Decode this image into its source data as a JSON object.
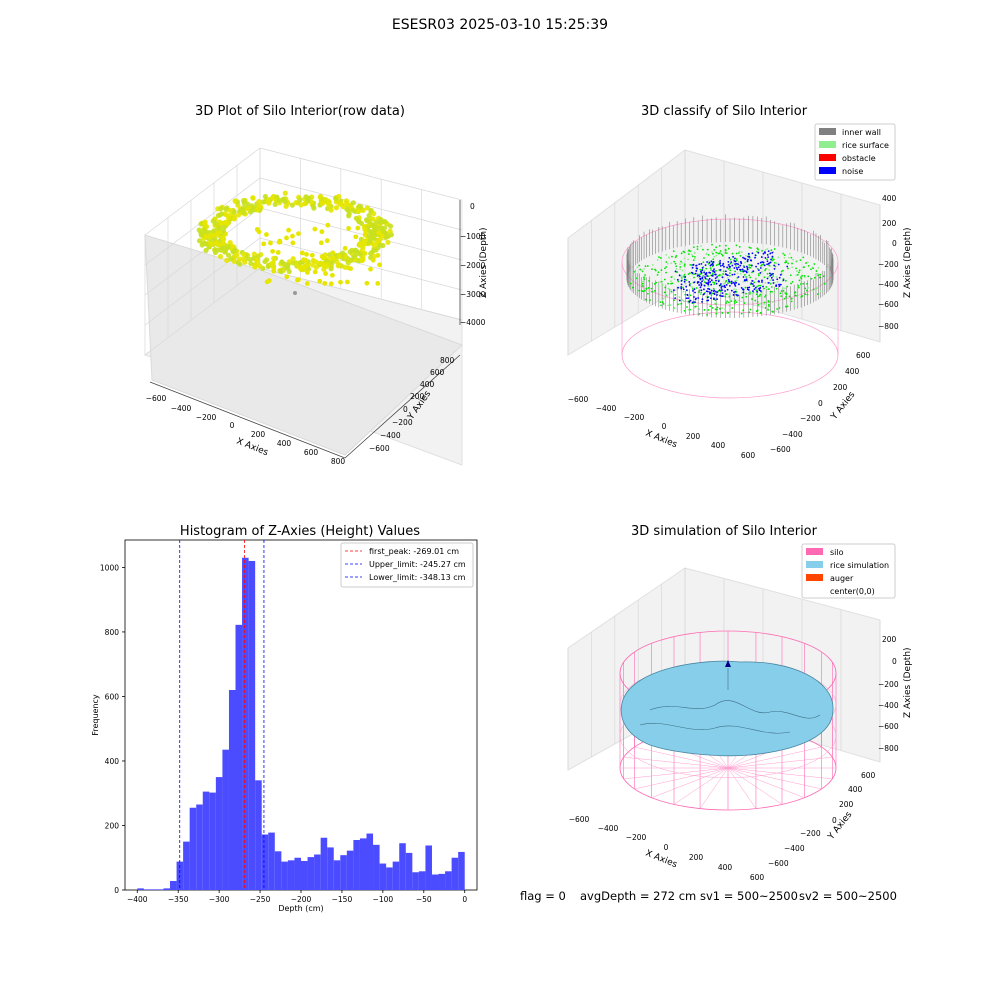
{
  "figure": {
    "suptitle": "ESESR03 2025-03-10 15:25:39"
  },
  "colors": {
    "raw_points": "#e6e600",
    "inner_wall": "#808080",
    "rice_surface": "#90ee90",
    "rice_points": "#00e600",
    "obstacle": "#ff0000",
    "noise": "#0000ff",
    "silo": "#ff69b4",
    "rice_simulation": "#87ceeb",
    "auger": "#ff4500",
    "hist_bar": "#4b4bff",
    "first_peak_line": "#ff0000",
    "limit_line": "#0000ff"
  },
  "chart_data": [
    {
      "type": "scatter",
      "title": "3D Plot of Silo Interior(row data)",
      "xlabel": "X Axies",
      "ylabel": "Y Axies",
      "zlabel": "Z Axies (Depth)",
      "x_ticks": [
        "−600",
        "−400",
        "−200",
        "0",
        "200",
        "400",
        "600",
        "800"
      ],
      "y_ticks": [
        "−600",
        "−400",
        "−200",
        "0",
        "200",
        "400",
        "600",
        "800"
      ],
      "z_ticks": [
        "0",
        "−1000",
        "−2000",
        "−3000",
        "−4000"
      ],
      "xlim": [
        -700,
        800
      ],
      "ylim": [
        -700,
        900
      ],
      "zlim": [
        -4500,
        100
      ]
    },
    {
      "type": "scatter",
      "title": "3D classify of Silo Interior",
      "xlabel": "X Axies",
      "ylabel": "Y Axies",
      "zlabel": "Z Axies (Depth)",
      "x_ticks": [
        "−600",
        "−400",
        "−200",
        "0",
        "200",
        "400",
        "600"
      ],
      "y_ticks": [
        "−600",
        "−400",
        "−200",
        "0",
        "200",
        "400",
        "600"
      ],
      "z_ticks": [
        "400",
        "200",
        "0",
        "−200",
        "−400",
        "−600",
        "−800"
      ],
      "legend": [
        "inner wall",
        "rice surface",
        "obstacle",
        "noise"
      ],
      "legend_position": "top-right"
    },
    {
      "type": "bar",
      "title": "Histogram of Z-Axies (Height) Values",
      "xlabel": "Depth (cm)",
      "ylabel": "Frequency",
      "x_ticks": [
        -400,
        -350,
        -300,
        -250,
        -200,
        -150,
        -100,
        -50,
        0
      ],
      "y_ticks": [
        0,
        200,
        400,
        600,
        800,
        1000
      ],
      "xlim": [
        -415,
        15
      ],
      "ylim": [
        0,
        1085
      ],
      "bin_width": 8,
      "bins": [
        [
          -400,
          5
        ],
        [
          -392,
          2
        ],
        [
          -384,
          2
        ],
        [
          -376,
          2
        ],
        [
          -368,
          5
        ],
        [
          -360,
          28
        ],
        [
          -352,
          88
        ],
        [
          -344,
          150
        ],
        [
          -336,
          255
        ],
        [
          -328,
          265
        ],
        [
          -320,
          305
        ],
        [
          -312,
          302
        ],
        [
          -304,
          350
        ],
        [
          -296,
          435
        ],
        [
          -288,
          620
        ],
        [
          -280,
          822
        ],
        [
          -272,
          1030
        ],
        [
          -264,
          1020
        ],
        [
          -256,
          340
        ],
        [
          -248,
          172
        ],
        [
          -240,
          178
        ],
        [
          -232,
          120
        ],
        [
          -224,
          88
        ],
        [
          -216,
          92
        ],
        [
          -208,
          100
        ],
        [
          -200,
          90
        ],
        [
          -192,
          102
        ],
        [
          -184,
          110
        ],
        [
          -176,
          162
        ],
        [
          -168,
          132
        ],
        [
          -160,
          92
        ],
        [
          -152,
          108
        ],
        [
          -144,
          122
        ],
        [
          -136,
          155
        ],
        [
          -128,
          160
        ],
        [
          -120,
          175
        ],
        [
          -112,
          140
        ],
        [
          -104,
          82
        ],
        [
          -96,
          70
        ],
        [
          -88,
          88
        ],
        [
          -80,
          145
        ],
        [
          -72,
          115
        ],
        [
          -64,
          55
        ],
        [
          -56,
          58
        ],
        [
          -48,
          138
        ],
        [
          -40,
          48
        ],
        [
          -32,
          50
        ],
        [
          -24,
          58
        ],
        [
          -16,
          100
        ],
        [
          -8,
          118
        ]
      ],
      "vlines": [
        {
          "label": "first_peak: -269.01 cm",
          "x": -269.01,
          "color": "#ff0000"
        },
        {
          "label": "Upper_limit: -245.27 cm",
          "x": -245.27,
          "color": "#0000ff"
        },
        {
          "label": "Lower_limit: -348.13 cm",
          "x": -348.13,
          "color": "#0000ff"
        }
      ],
      "legend_position": "top-right"
    },
    {
      "type": "area",
      "title": "3D simulation of Silo Interior",
      "xlabel": "X Axies",
      "ylabel": "Y Axies",
      "zlabel": "Z Axies (Depth)",
      "x_ticks": [
        "−600",
        "−400",
        "−200",
        "0",
        "200",
        "400",
        "600"
      ],
      "y_ticks": [
        "−600",
        "−400",
        "−200",
        "0",
        "200",
        "400",
        "600"
      ],
      "z_ticks": [
        "200",
        "0",
        "−200",
        "−400",
        "−600",
        "−800"
      ],
      "legend": [
        "silo",
        "rice simulation",
        "auger",
        "center(0,0)"
      ],
      "legend_position": "top-right"
    }
  ],
  "status": {
    "flag": "flag = 0",
    "avg_depth": "avgDepth = 272 cm",
    "sv1": "sv1 = 500~2500",
    "sv2": "sv2 = 500~2500"
  }
}
